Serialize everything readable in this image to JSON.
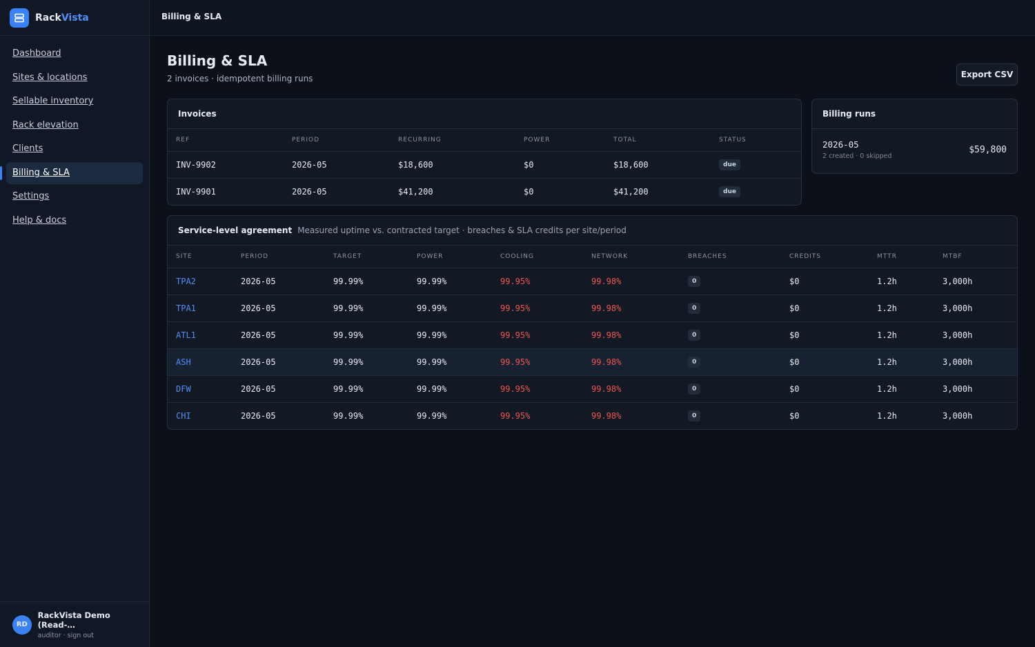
{
  "brand": {
    "part1": "Rack",
    "part2": "Vista"
  },
  "nav": [
    "Dashboard",
    "Sites & locations",
    "Sellable inventory",
    "Rack elevation",
    "Clients",
    "Billing & SLA",
    "Settings",
    "Help & docs"
  ],
  "topbar": {
    "title": "Billing & SLA"
  },
  "header": {
    "title": "Billing & SLA",
    "subtitle": "2 invoices · idempotent billing runs",
    "export": "Export CSV"
  },
  "invoices": {
    "title": "Invoices",
    "columns": [
      "REF",
      "PERIOD",
      "RECURRING",
      "POWER",
      "TOTAL",
      "STATUS"
    ],
    "rows": [
      [
        "INV-9902",
        "2026-05",
        "$18,600",
        "$0",
        "$18,600",
        "due"
      ],
      [
        "INV-9901",
        "2026-05",
        "$41,200",
        "$0",
        "$41,200",
        "due"
      ]
    ]
  },
  "billing_runs": {
    "title": "Billing runs",
    "runs": [
      {
        "period": "2026-05",
        "detail": "2 created · 0 skipped",
        "total": "$59,800"
      }
    ]
  },
  "sla": {
    "title": "Service-level agreement",
    "description": "Measured uptime vs. contracted target · breaches & SLA credits per site/period",
    "columns": [
      "SITE",
      "PERIOD",
      "TARGET",
      "POWER",
      "COOLING",
      "NETWORK",
      "BREACHES",
      "CREDITS",
      "MTTR",
      "MTBF"
    ],
    "rows": [
      [
        "TPA2",
        "2026-05",
        "99.99%",
        "99.99%",
        "99.95%",
        "99.98%",
        "0",
        "$0",
        "1.2h",
        "3,000h"
      ],
      [
        "TPA1",
        "2026-05",
        "99.99%",
        "99.99%",
        "99.95%",
        "99.98%",
        "0",
        "$0",
        "1.2h",
        "3,000h"
      ],
      [
        "ATL1",
        "2026-05",
        "99.99%",
        "99.99%",
        "99.95%",
        "99.98%",
        "0",
        "$0",
        "1.2h",
        "3,000h"
      ],
      [
        "ASH",
        "2026-05",
        "99.99%",
        "99.99%",
        "99.95%",
        "99.98%",
        "0",
        "$0",
        "1.2h",
        "3,000h"
      ],
      [
        "DFW",
        "2026-05",
        "99.99%",
        "99.99%",
        "99.95%",
        "99.98%",
        "0",
        "$0",
        "1.2h",
        "3,000h"
      ],
      [
        "CHI",
        "2026-05",
        "99.99%",
        "99.99%",
        "99.95%",
        "99.98%",
        "0",
        "$0",
        "1.2h",
        "3,000h"
      ]
    ]
  },
  "user": {
    "initials": "RD",
    "name": "RackVista Demo (Read-…",
    "meta": "auditor · sign out"
  }
}
